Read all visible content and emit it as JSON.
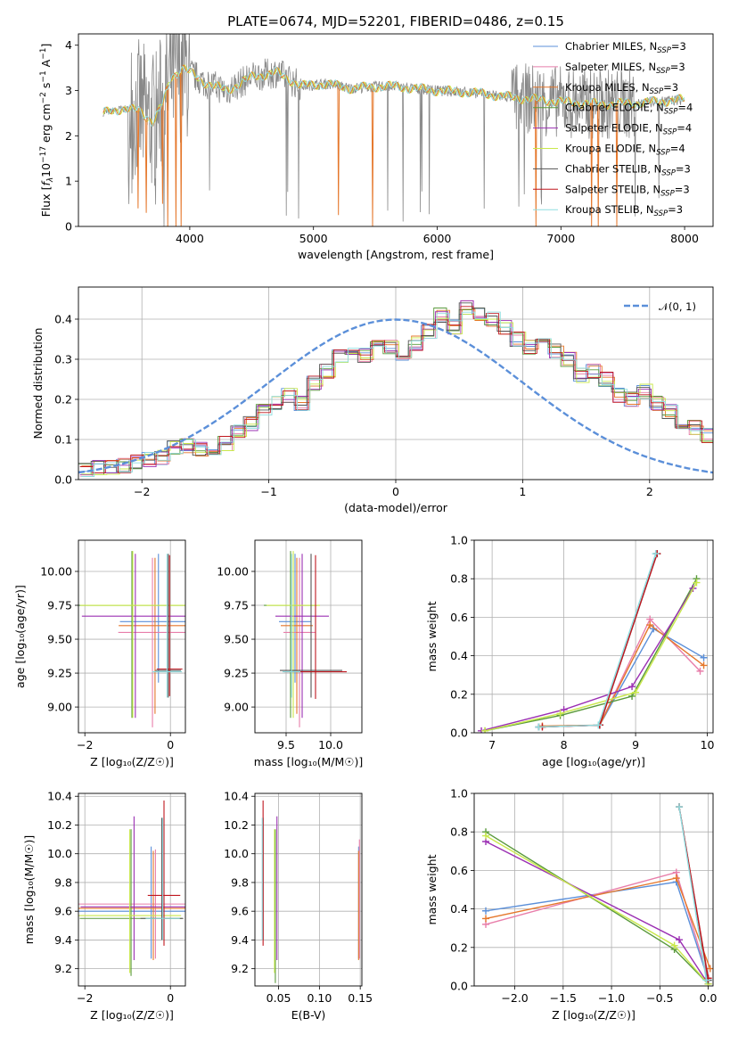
{
  "figure_title": "PLATE=0674, MJD=52201, FIBERID=0486, z=0.15",
  "colors": {
    "chabrier_miles": "#5b8fd9",
    "salpeter_miles": "#e87eaa",
    "kroupa_miles": "#e5772b",
    "chabrier_elodie": "#5a9a3c",
    "salpeter_elodie": "#9b30b3",
    "kroupa_elodie": "#c9e84b",
    "chabrier_stelib": "#555555",
    "salpeter_stelib": "#c0171f",
    "kroupa_stelib": "#8fdde0",
    "data": "#888888",
    "normal": "#5b8fd9"
  },
  "legend_spectrum": [
    {
      "pre": "Chabrier MILES, N",
      "sub": "SSP",
      "post": "=3",
      "color_key": "chabrier_miles"
    },
    {
      "pre": "Salpeter MILES, N",
      "sub": "SSP",
      "post": "=3",
      "color_key": "salpeter_miles"
    },
    {
      "pre": "Kroupa MILES, N",
      "sub": "SSP",
      "post": "=3",
      "color_key": "kroupa_miles"
    },
    {
      "pre": "Chabrier ELODIE, N",
      "sub": "SSP",
      "post": "=4",
      "color_key": "chabrier_elodie"
    },
    {
      "pre": "Salpeter ELODIE, N",
      "sub": "SSP",
      "post": "=4",
      "color_key": "salpeter_elodie"
    },
    {
      "pre": "Kroupa ELODIE, N",
      "sub": "SSP",
      "post": "=4",
      "color_key": "kroupa_elodie"
    },
    {
      "pre": "Chabrier STELIB, N",
      "sub": "SSP",
      "post": "=3",
      "color_key": "chabrier_stelib"
    },
    {
      "pre": "Salpeter STELIB, N",
      "sub": "SSP",
      "post": "=3",
      "color_key": "salpeter_stelib"
    },
    {
      "pre": "Kroupa STELIB, N",
      "sub": "SSP",
      "post": "=3",
      "color_key": "kroupa_stelib"
    }
  ],
  "legend_residual": {
    "label": "𝒩(0, 1)"
  },
  "axis_labels": {
    "spec_x": "wavelength [Angstrom, rest frame]",
    "spec_y": "Flux [f_λ10^−17 erg cm^−2 s^−1 A^−1]",
    "res_x": "(data-model)/error",
    "res_y": "Normed distribution",
    "age": "age  [log₁₀(age/yr)]",
    "metal": "Z [log₁₀(Z/Z☉)]",
    "mass": "mass [log₁₀(M/M☉)]",
    "ebv": "E(B-V)",
    "mass_weight": "mass weight"
  },
  "chart_data": [
    {
      "id": "spectrum",
      "type": "line",
      "xlim": [
        3100,
        8230
      ],
      "ylim": [
        0,
        4.25
      ],
      "xticks": [
        "4000",
        "5000",
        "6000",
        "7000",
        "8000"
      ],
      "yticks": [
        "0",
        "1",
        "2",
        "3",
        "4"
      ],
      "continuum": [
        [
          3300,
          2.5
        ],
        [
          3450,
          2.6
        ],
        [
          3600,
          2.55
        ],
        [
          3700,
          2.3
        ],
        [
          3780,
          2.7
        ],
        [
          3850,
          3.3
        ],
        [
          3950,
          3.5
        ],
        [
          4100,
          3.2
        ],
        [
          4300,
          3.0
        ],
        [
          4500,
          3.3
        ],
        [
          4700,
          3.4
        ],
        [
          4900,
          3.1
        ],
        [
          5100,
          3.15
        ],
        [
          5300,
          3.05
        ],
        [
          5600,
          3.1
        ],
        [
          6000,
          3.0
        ],
        [
          6300,
          2.95
        ],
        [
          6600,
          2.85
        ],
        [
          7000,
          2.75
        ],
        [
          7300,
          2.7
        ],
        [
          7600,
          2.72
        ],
        [
          8000,
          2.8
        ]
      ],
      "absorption_lines": [
        [
          3580,
          0.4
        ],
        [
          3650,
          0.3
        ],
        [
          3780,
          0.5
        ],
        [
          3820,
          0.0
        ],
        [
          3890,
          0.0
        ],
        [
          3930,
          0.0
        ],
        [
          5200,
          0.25
        ],
        [
          5480,
          0.0
        ],
        [
          6800,
          0.0
        ],
        [
          7250,
          0.0
        ],
        [
          7300,
          0.0
        ],
        [
          7450,
          0.0
        ]
      ]
    },
    {
      "id": "residuals",
      "type": "step",
      "xlim": [
        -2.5,
        2.5
      ],
      "ylim": [
        0,
        0.48
      ],
      "xticks": [
        "−2",
        "−1",
        "0",
        "1",
        "2"
      ],
      "yticks": [
        "0.0",
        "0.1",
        "0.2",
        "0.3",
        "0.4"
      ],
      "bins_x_start": -2.5,
      "bin_width": 0.1,
      "base_values": [
        0.025,
        0.03,
        0.03,
        0.035,
        0.045,
        0.05,
        0.055,
        0.08,
        0.085,
        0.075,
        0.08,
        0.09,
        0.12,
        0.14,
        0.17,
        0.19,
        0.21,
        0.19,
        0.24,
        0.27,
        0.31,
        0.33,
        0.31,
        0.34,
        0.33,
        0.29,
        0.34,
        0.37,
        0.41,
        0.38,
        0.43,
        0.41,
        0.4,
        0.38,
        0.35,
        0.33,
        0.34,
        0.32,
        0.3,
        0.26,
        0.27,
        0.25,
        0.21,
        0.2,
        0.22,
        0.19,
        0.17,
        0.14,
        0.13,
        0.11,
        0.1,
        0.09,
        0.08,
        0.09,
        0.065,
        0.05,
        0.045,
        0.04,
        0.04,
        0.035
      ],
      "normal_curve": {
        "mean": 0,
        "sigma": 1
      }
    },
    {
      "id": "age_vs_metal",
      "type": "errorbar",
      "xlim": [
        -2.15,
        0.35
      ],
      "ylim": [
        8.81,
        10.23
      ],
      "xticks": [
        "−2",
        "0"
      ],
      "yticks": [
        "9.00",
        "9.25",
        "9.50",
        "9.75",
        "10.00"
      ],
      "points": [
        {
          "key": "chabrier_miles",
          "x": -0.28,
          "xerr": 0.9,
          "y": 9.63,
          "yerr_lo": 0.45,
          "yerr_hi": 0.5
        },
        {
          "key": "salpeter_miles",
          "x": -0.42,
          "xerr": 0.8,
          "y": 9.55,
          "yerr_lo": 0.7,
          "yerr_hi": 0.55
        },
        {
          "key": "kroupa_miles",
          "x": -0.36,
          "xerr": 0.85,
          "y": 9.6,
          "yerr_lo": 0.65,
          "yerr_hi": 0.5
        },
        {
          "key": "chabrier_elodie",
          "x": -0.9,
          "xerr": 1.25,
          "y": 9.75,
          "yerr_lo": 0.83,
          "yerr_hi": 0.4
        },
        {
          "key": "salpeter_elodie",
          "x": -0.82,
          "xerr": 1.25,
          "y": 9.67,
          "yerr_lo": 0.75,
          "yerr_hi": 0.46
        },
        {
          "key": "kroupa_elodie",
          "x": -0.88,
          "xerr": 1.23,
          "y": 9.75,
          "yerr_lo": 0.83,
          "yerr_hi": 0.4
        },
        {
          "key": "chabrier_stelib",
          "x": -0.05,
          "xerr": 0.3,
          "y": 9.27,
          "yerr_lo": 0.2,
          "yerr_hi": 0.86
        },
        {
          "key": "salpeter_stelib",
          "x": -0.02,
          "xerr": 0.3,
          "y": 9.28,
          "yerr_lo": 0.2,
          "yerr_hi": 0.84
        },
        {
          "key": "kroupa_stelib",
          "x": -0.08,
          "xerr": 0.35,
          "y": 9.26,
          "yerr_lo": 0.19,
          "yerr_hi": 0.87
        }
      ]
    },
    {
      "id": "age_vs_mass",
      "type": "errorbar",
      "xlim": [
        9.15,
        10.35
      ],
      "ylim": [
        8.81,
        10.23
      ],
      "xticks": [
        "9.5",
        "10.0"
      ],
      "yticks": [
        "9.00",
        "9.25",
        "9.50",
        "9.75",
        "10.00"
      ],
      "points": [
        {
          "key": "chabrier_miles",
          "x": 9.6,
          "xerr": 0.18,
          "y": 9.63,
          "yerr_lo": 0.45,
          "yerr_hi": 0.5
        },
        {
          "key": "salpeter_miles",
          "x": 9.65,
          "xerr": 0.18,
          "y": 9.55,
          "yerr_lo": 0.7,
          "yerr_hi": 0.55
        },
        {
          "key": "kroupa_miles",
          "x": 9.62,
          "xerr": 0.18,
          "y": 9.6,
          "yerr_lo": 0.65,
          "yerr_hi": 0.5
        },
        {
          "key": "chabrier_elodie",
          "x": 9.55,
          "xerr": 0.3,
          "y": 9.75,
          "yerr_lo": 0.83,
          "yerr_hi": 0.4
        },
        {
          "key": "salpeter_elodie",
          "x": 9.68,
          "xerr": 0.3,
          "y": 9.67,
          "yerr_lo": 0.75,
          "yerr_hi": 0.46
        },
        {
          "key": "kroupa_elodie",
          "x": 9.58,
          "xerr": 0.3,
          "y": 9.75,
          "yerr_lo": 0.83,
          "yerr_hi": 0.4
        },
        {
          "key": "chabrier_stelib",
          "x": 9.78,
          "xerr": 0.35,
          "y": 9.27,
          "yerr_lo": 0.2,
          "yerr_hi": 0.86
        },
        {
          "key": "salpeter_stelib",
          "x": 9.83,
          "xerr": 0.35,
          "y": 9.26,
          "yerr_lo": 0.2,
          "yerr_hi": 0.86
        },
        {
          "key": "kroupa_stelib",
          "x": 9.56,
          "xerr": 0.1,
          "y": 9.26,
          "yerr_lo": 0.19,
          "yerr_hi": 0.87
        }
      ]
    },
    {
      "id": "mass_weight_vs_age",
      "type": "line",
      "xlim": [
        6.75,
        10.08
      ],
      "ylim": [
        0,
        1
      ],
      "xticks": [
        "7",
        "8",
        "9",
        "10"
      ],
      "yticks": [
        "0.0",
        "0.2",
        "0.4",
        "0.6",
        "0.8",
        "1.0"
      ],
      "series": [
        {
          "key": "chabrier_miles",
          "x": [
            7.65,
            8.5,
            9.25,
            9.95
          ],
          "y": [
            0.03,
            0.04,
            0.54,
            0.39
          ]
        },
        {
          "key": "salpeter_miles",
          "x": [
            7.65,
            8.5,
            9.2,
            9.9
          ],
          "y": [
            0.03,
            0.04,
            0.59,
            0.32
          ]
        },
        {
          "key": "kroupa_miles",
          "x": [
            7.7,
            8.5,
            9.2,
            9.95
          ],
          "y": [
            0.035,
            0.04,
            0.56,
            0.35
          ]
        },
        {
          "key": "chabrier_elodie",
          "x": [
            6.9,
            7.95,
            8.95,
            9.85
          ],
          "y": [
            0.01,
            0.09,
            0.19,
            0.8
          ]
        },
        {
          "key": "salpeter_elodie",
          "x": [
            6.85,
            8.0,
            8.95,
            9.8
          ],
          "y": [
            0.01,
            0.12,
            0.24,
            0.75
          ]
        },
        {
          "key": "kroupa_elodie",
          "x": [
            6.9,
            7.95,
            9.0,
            9.85
          ],
          "y": [
            0.01,
            0.1,
            0.21,
            0.78
          ]
        },
        {
          "key": "chabrier_stelib",
          "x": [
            7.65,
            8.5,
            9.3
          ],
          "y": [
            0.03,
            0.04,
            0.93
          ]
        },
        {
          "key": "salpeter_stelib",
          "x": [
            7.7,
            8.5,
            9.3
          ],
          "y": [
            0.03,
            0.04,
            0.93
          ]
        },
        {
          "key": "kroupa_stelib",
          "x": [
            7.65,
            8.48,
            9.28
          ],
          "y": [
            0.03,
            0.04,
            0.93
          ]
        }
      ]
    },
    {
      "id": "mass_vs_metal",
      "type": "errorbar",
      "xlim": [
        -2.15,
        0.35
      ],
      "ylim": [
        9.08,
        10.42
      ],
      "xticks": [
        "−2",
        "0"
      ],
      "yticks": [
        "9.2",
        "9.4",
        "9.6",
        "9.8",
        "10.0",
        "10.2",
        "10.4"
      ],
      "points": [
        {
          "key": "chabrier_miles",
          "x": -0.45,
          "xerr": 1.7,
          "y": 9.6,
          "yerr_lo": 0.33,
          "yerr_hi": 0.45
        },
        {
          "key": "salpeter_miles",
          "x": -0.35,
          "xerr": 1.8,
          "y": 9.65,
          "yerr_lo": 0.38,
          "yerr_hi": 0.38
        },
        {
          "key": "kroupa_miles",
          "x": -0.4,
          "xerr": 1.75,
          "y": 9.62,
          "yerr_lo": 0.36,
          "yerr_hi": 0.4
        },
        {
          "key": "chabrier_elodie",
          "x": -0.92,
          "xerr": 1.2,
          "y": 9.55,
          "yerr_lo": 0.4,
          "yerr_hi": 0.62
        },
        {
          "key": "salpeter_elodie",
          "x": -0.85,
          "xerr": 1.25,
          "y": 9.63,
          "yerr_lo": 0.37,
          "yerr_hi": 0.63
        },
        {
          "key": "kroupa_elodie",
          "x": -0.95,
          "xerr": 1.2,
          "y": 9.57,
          "yerr_lo": 0.4,
          "yerr_hi": 0.6
        },
        {
          "key": "chabrier_stelib",
          "x": -0.2,
          "xerr": 0.5,
          "y": 9.55,
          "yerr_lo": 0.15,
          "yerr_hi": 0.7
        },
        {
          "key": "salpeter_stelib",
          "x": -0.15,
          "xerr": 0.38,
          "y": 9.71,
          "yerr_lo": 0.35,
          "yerr_hi": 0.66
        },
        {
          "key": "kroupa_stelib",
          "x": -0.18,
          "xerr": 0.4,
          "y": 9.55,
          "yerr_lo": 0.15,
          "yerr_hi": 0.7
        }
      ]
    },
    {
      "id": "mass_vs_ebv",
      "type": "errorbar",
      "xlim": [
        0.021,
        0.152
      ],
      "ylim": [
        9.08,
        10.42
      ],
      "xticks": [
        "0.05",
        "0.10",
        "0.15"
      ],
      "yticks": [
        "9.2",
        "9.4",
        "9.6",
        "9.8",
        "10.0",
        "10.2",
        "10.4"
      ],
      "points": [
        {
          "key": "chabrier_miles",
          "x": 0.148,
          "y": 9.6,
          "yerr_lo": 0.33,
          "yerr_hi": 0.45
        },
        {
          "key": "salpeter_miles",
          "x": 0.149,
          "y": 9.65,
          "yerr_lo": 0.38,
          "yerr_hi": 0.45
        },
        {
          "key": "kroupa_miles",
          "x": 0.148,
          "y": 9.62,
          "yerr_lo": 0.36,
          "yerr_hi": 0.4
        },
        {
          "key": "chabrier_elodie",
          "x": 0.046,
          "y": 9.55,
          "yerr_lo": 0.45,
          "yerr_hi": 0.62
        },
        {
          "key": "salpeter_elodie",
          "x": 0.048,
          "y": 9.63,
          "yerr_lo": 0.37,
          "yerr_hi": 0.63
        },
        {
          "key": "kroupa_elodie",
          "x": 0.045,
          "y": 9.57,
          "yerr_lo": 0.4,
          "yerr_hi": 0.6
        },
        {
          "key": "chabrier_stelib",
          "x": 0.031,
          "y": 9.55,
          "yerr_lo": 0.15,
          "yerr_hi": 0.7
        },
        {
          "key": "salpeter_stelib",
          "x": 0.031,
          "y": 9.71,
          "yerr_lo": 0.35,
          "yerr_hi": 0.66
        },
        {
          "key": "kroupa_stelib",
          "x": 0.03,
          "y": 9.55,
          "yerr_lo": 0.15,
          "yerr_hi": 0.7
        }
      ]
    },
    {
      "id": "mass_weight_vs_metal",
      "type": "line",
      "xlim": [
        -2.42,
        0.05
      ],
      "ylim": [
        0,
        1
      ],
      "xticks": [
        "−2.0",
        "−1.5",
        "−1.0",
        "−0.5",
        "0.0"
      ],
      "yticks": [
        "0.0",
        "0.2",
        "0.4",
        "0.6",
        "0.8",
        "1.0"
      ],
      "series": [
        {
          "key": "chabrier_miles",
          "x": [
            -2.3,
            -0.33,
            0.0
          ],
          "y": [
            0.39,
            0.54,
            0.03
          ]
        },
        {
          "key": "salpeter_miles",
          "x": [
            -2.3,
            -0.33,
            0.0
          ],
          "y": [
            0.32,
            0.59,
            0.04
          ]
        },
        {
          "key": "kroupa_miles",
          "x": [
            -2.3,
            -0.33,
            0.02
          ],
          "y": [
            0.35,
            0.56,
            0.09
          ]
        },
        {
          "key": "chabrier_elodie",
          "x": [
            -2.3,
            -0.35,
            0.0
          ],
          "y": [
            0.8,
            0.19,
            0.01
          ]
        },
        {
          "key": "salpeter_elodie",
          "x": [
            -2.3,
            -0.3,
            0.0
          ],
          "y": [
            0.75,
            0.24,
            0.01
          ]
        },
        {
          "key": "kroupa_elodie",
          "x": [
            -2.3,
            -0.35,
            0.0
          ],
          "y": [
            0.78,
            0.21,
            0.01
          ]
        },
        {
          "key": "chabrier_stelib",
          "x": [
            -0.3,
            0.0
          ],
          "y": [
            0.93,
            0.03
          ]
        },
        {
          "key": "salpeter_stelib",
          "x": [
            -0.3,
            0.0
          ],
          "y": [
            0.93,
            0.04
          ]
        },
        {
          "key": "kroupa_stelib",
          "x": [
            -0.3,
            -0.02
          ],
          "y": [
            0.93,
            0.03
          ]
        }
      ]
    }
  ]
}
